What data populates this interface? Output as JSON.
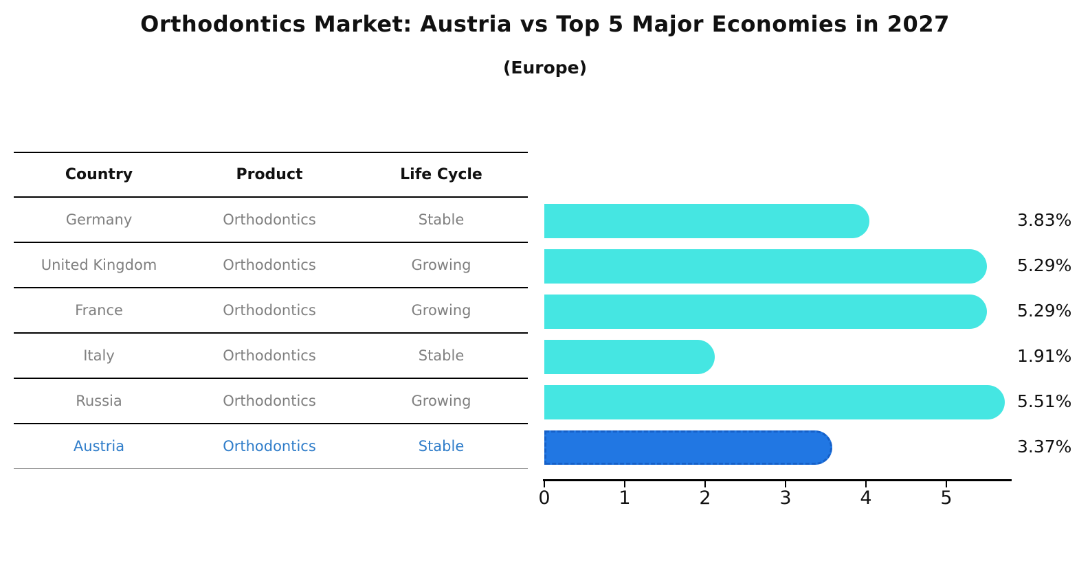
{
  "title": "Orthodontics Market: Austria vs Top 5 Major Economies in 2027",
  "subtitle": "(Europe)",
  "table": {
    "headers": [
      "Country",
      "Product",
      "Life Cycle"
    ],
    "rows": [
      {
        "country": "Germany",
        "product": "Orthodontics",
        "life_cycle": "Stable",
        "highlight": false
      },
      {
        "country": "United Kingdom",
        "product": "Orthodontics",
        "life_cycle": "Growing",
        "highlight": false
      },
      {
        "country": "France",
        "product": "Orthodontics",
        "life_cycle": "Growing",
        "highlight": false
      },
      {
        "country": "Italy",
        "product": "Orthodontics",
        "life_cycle": "Stable",
        "highlight": false
      },
      {
        "country": "Russia",
        "product": "Orthodontics",
        "life_cycle": "Growing",
        "highlight": false
      },
      {
        "country": "Austria",
        "product": "Orthodontics",
        "life_cycle": "Stable",
        "highlight": true
      }
    ]
  },
  "chart_data": {
    "type": "bar",
    "orientation": "horizontal",
    "title": "Orthodontics Market: Austria vs Top 5 Major Economies in 2027",
    "subtitle": "(Europe)",
    "categories": [
      "Germany",
      "United Kingdom",
      "France",
      "Italy",
      "Russia",
      "Austria"
    ],
    "values": [
      3.83,
      5.29,
      5.29,
      1.91,
      5.51,
      3.37
    ],
    "value_labels": [
      "3.83%",
      "5.29%",
      "5.29%",
      "1.91%",
      "5.51%",
      "3.37%"
    ],
    "xlabel": "",
    "ylabel": "",
    "xticks": [
      "0",
      "1",
      "2",
      "3",
      "4",
      "5"
    ],
    "xlim": [
      0,
      5.8
    ],
    "grid": false,
    "legend": false,
    "highlight_category": "Austria",
    "bar_color": "#45e6e2",
    "highlight_bar_color": "#2177e3",
    "highlight_border_color": "#1560c8",
    "highlight_text_color": "#2e7cc9"
  }
}
